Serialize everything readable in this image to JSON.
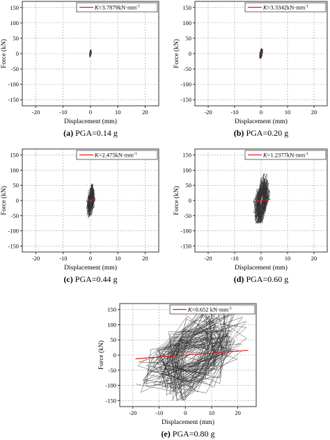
{
  "chart_data": [
    {
      "type": "line",
      "panel_label": "(a)",
      "caption": "PGA=0.14 g",
      "xlabel": "Displacement (mm)",
      "ylabel": "Force (kN)",
      "xlim": [
        -25,
        25
      ],
      "ylim": [
        -170,
        170
      ],
      "xticks": [
        "-20",
        "-10",
        "0",
        "10",
        "20"
      ],
      "yticks": [
        "150",
        "100",
        "50",
        "0",
        "-50",
        "-100",
        "-150"
      ],
      "grid": true,
      "legend_placement": "top-right",
      "legend_label_prefix": "K",
      "legend_label_value": "=3.7879kN·mm",
      "legend_label_exp": "-1",
      "stiffness_kN_per_mm": 3.7879,
      "loop_extent": {
        "x": [
          -0.5,
          0.5
        ],
        "y": [
          -15,
          15
        ]
      },
      "colors": {
        "hysteresis": "#333333",
        "fit": "#e41a1c"
      }
    },
    {
      "type": "line",
      "panel_label": "(b)",
      "caption": "PGA=0.20 g",
      "xlabel": "Displacement (mm)",
      "ylabel": "Force (kN)",
      "xlim": [
        -25,
        25
      ],
      "ylim": [
        -170,
        170
      ],
      "xticks": [
        "-20",
        "-10",
        "0",
        "10",
        "20"
      ],
      "yticks": [
        "150",
        "100",
        "50",
        "0",
        "-50",
        "-100",
        "-150"
      ],
      "grid": true,
      "legend_placement": "top-right",
      "legend_label_prefix": "K",
      "legend_label_value": "=3.3342kN·mm",
      "legend_label_exp": "-1",
      "stiffness_kN_per_mm": 3.3342,
      "loop_extent": {
        "x": [
          -0.7,
          0.7
        ],
        "y": [
          -20,
          20
        ]
      },
      "colors": {
        "hysteresis": "#333333",
        "fit": "#e41a1c"
      }
    },
    {
      "type": "line",
      "panel_label": "(c)",
      "caption": "PGA=0.44 g",
      "xlabel": "Displacement (mm)",
      "ylabel": "Force (kN)",
      "xlim": [
        -25,
        25
      ],
      "ylim": [
        -170,
        170
      ],
      "xticks": [
        "-20",
        "-10",
        "0",
        "10",
        "20"
      ],
      "yticks": [
        "150",
        "100",
        "50",
        "0",
        "-50",
        "-100",
        "-150"
      ],
      "grid": true,
      "legend_placement": "top-right",
      "legend_label_prefix": "K",
      "legend_label_value": "=2.475kN·mm",
      "legend_label_exp": "-1",
      "stiffness_kN_per_mm": 2.475,
      "loop_extent": {
        "x": [
          -1.5,
          1.8
        ],
        "y": [
          -60,
          60
        ]
      },
      "colors": {
        "hysteresis": "#333333",
        "fit": "#e41a1c"
      }
    },
    {
      "type": "line",
      "panel_label": "(d)",
      "caption": "PGA=0.60 g",
      "xlabel": "Displacement (mm)",
      "ylabel": "Force (kN)",
      "xlim": [
        -25,
        25
      ],
      "ylim": [
        -170,
        170
      ],
      "xticks": [
        "-20",
        "-10",
        "0",
        "10",
        "20"
      ],
      "yticks": [
        "150",
        "100",
        "50",
        "0",
        "-50",
        "-100",
        "-150"
      ],
      "grid": true,
      "legend_placement": "top-right",
      "legend_label_prefix": "K",
      "legend_label_value": "=1.2377kN·mm",
      "legend_label_exp": "-1",
      "stiffness_kN_per_mm": 1.2377,
      "loop_extent": {
        "x": [
          -3,
          3.5
        ],
        "y": [
          -75,
          90
        ]
      },
      "colors": {
        "hysteresis": "#333333",
        "fit": "#e41a1c"
      }
    },
    {
      "type": "line",
      "panel_label": "(e)",
      "caption": "PGA=0.80 g",
      "xlabel": "Displacement (mm)",
      "ylabel": "Force (kN)",
      "xlim": [
        -25,
        27
      ],
      "ylim": [
        -170,
        170
      ],
      "xticks": [
        "-20",
        "-10",
        "0",
        "10",
        "20"
      ],
      "yticks": [
        "150",
        "100",
        "50",
        "0",
        "-50",
        "-100",
        "-150"
      ],
      "grid": true,
      "legend_placement": "top-right",
      "legend_label_prefix": "K",
      "legend_label_value": "=0.652 kN·mm",
      "legend_label_exp": "-1",
      "stiffness_kN_per_mm": 0.652,
      "loop_extent": {
        "x": [
          -19,
          24
        ],
        "y": [
          -150,
          165
        ]
      },
      "colors": {
        "hysteresis": "#333333",
        "fit": "#e41a1c"
      }
    }
  ]
}
